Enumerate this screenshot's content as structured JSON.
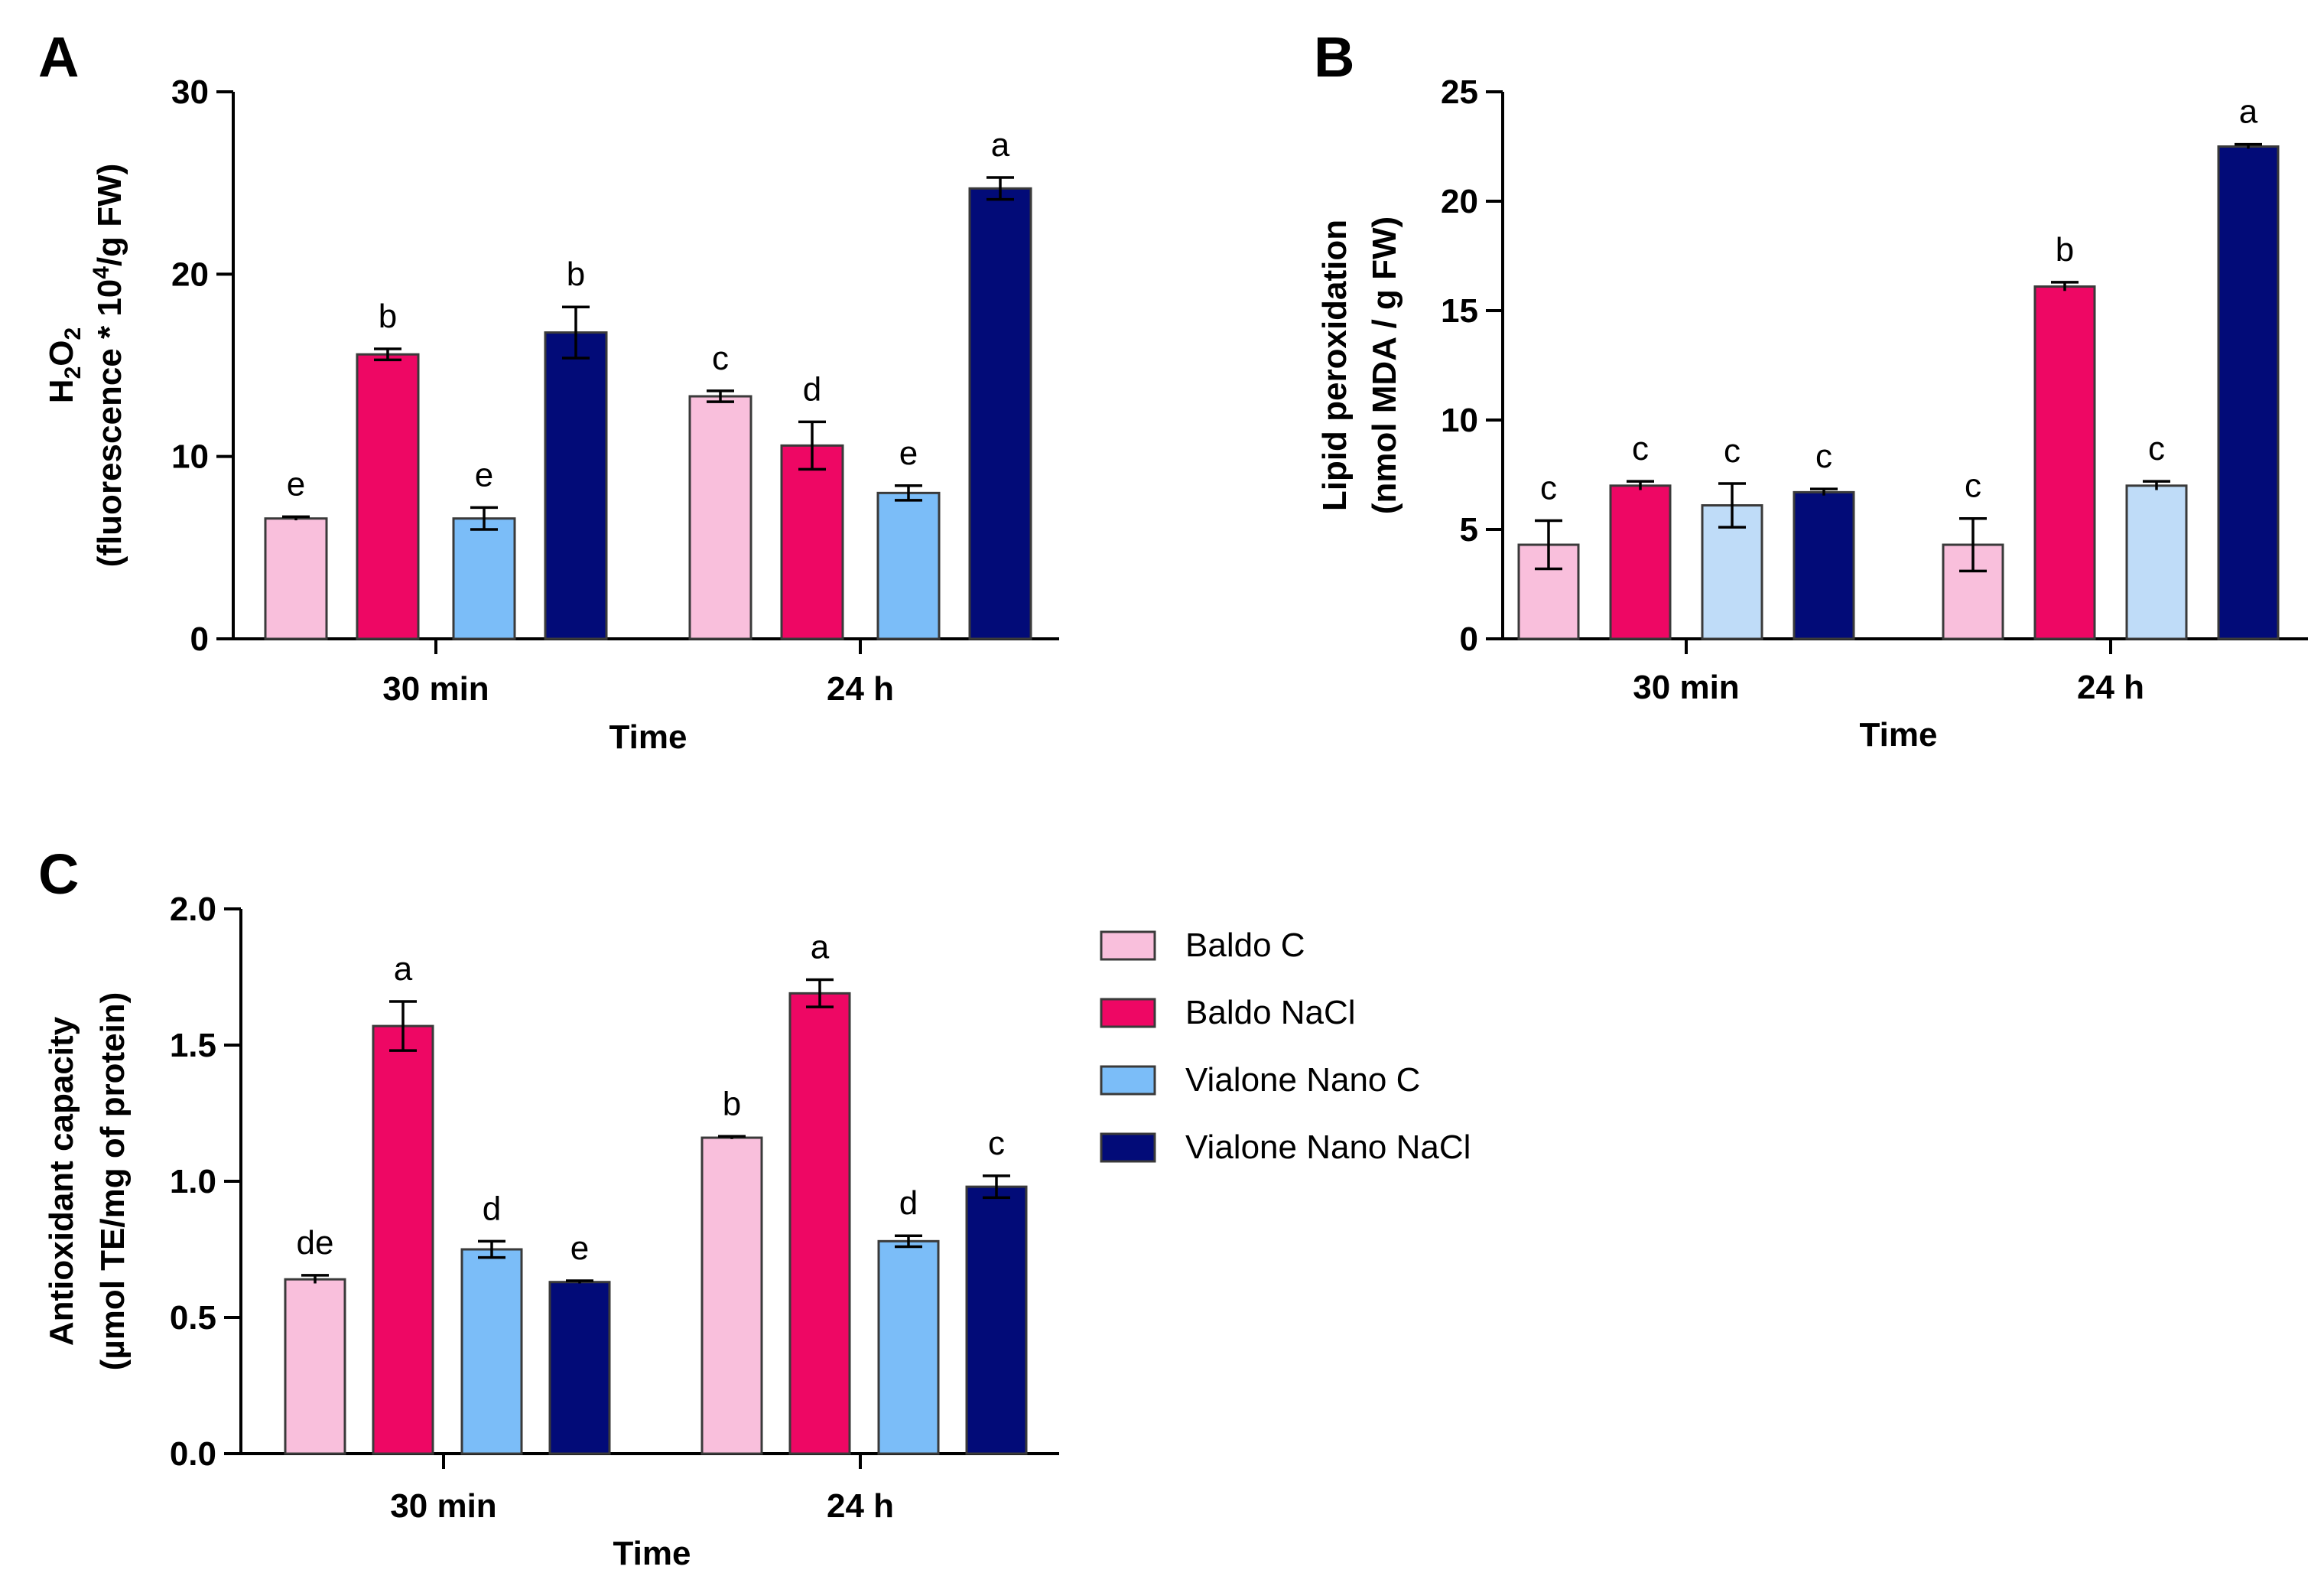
{
  "legend": [
    {
      "name": "Baldo C",
      "color": "#f9bfdc"
    },
    {
      "name": "Baldo NaCl",
      "color": "#ee0764"
    },
    {
      "name": "Vialone Nano C",
      "color": "#7bbdf8"
    },
    {
      "name": "Vialone Nano NaCl",
      "color": "#020b78"
    }
  ],
  "chart_data": [
    {
      "panel": "A",
      "type": "bar",
      "title": "",
      "xlabel": "Time",
      "ylabel_line1": "H2O2",
      "ylabel_line2": "(fluorescence * 10^4/g FW)",
      "categories": [
        "30 min",
        "24 h"
      ],
      "ylim": [
        0,
        30
      ],
      "yticks": [
        0,
        10,
        20,
        30
      ],
      "series": [
        {
          "name": "Baldo C",
          "color": "#f9bfdc",
          "values": [
            6.6,
            13.3
          ],
          "errors": [
            0.1,
            0.3
          ],
          "letters": [
            "e",
            "c"
          ]
        },
        {
          "name": "Baldo NaCl",
          "color": "#ee0764",
          "values": [
            15.6,
            10.6
          ],
          "errors": [
            0.3,
            1.3
          ],
          "letters": [
            "b",
            "d"
          ]
        },
        {
          "name": "Vialone Nano C",
          "color": "#7bbdf8",
          "values": [
            6.6,
            8.0
          ],
          "errors": [
            0.6,
            0.4
          ],
          "letters": [
            "e",
            "e"
          ]
        },
        {
          "name": "Vialone Nano NaCl",
          "color": "#020b78",
          "values": [
            16.8,
            24.7
          ],
          "errors": [
            1.4,
            0.6
          ],
          "letters": [
            "b",
            "a"
          ]
        }
      ]
    },
    {
      "panel": "B",
      "type": "bar",
      "title": "",
      "xlabel": "Time",
      "ylabel_line1": "Lipid peroxidation",
      "ylabel_line2": "(nmol MDA / g FW)",
      "categories": [
        "30 min",
        "24 h"
      ],
      "ylim": [
        0,
        25
      ],
      "yticks": [
        0,
        5,
        10,
        15,
        20,
        25
      ],
      "series": [
        {
          "name": "Baldo C",
          "color": "#f9bfdc",
          "values": [
            4.3,
            4.3
          ],
          "errors": [
            1.1,
            1.2
          ],
          "letters": [
            "c",
            "c"
          ]
        },
        {
          "name": "Baldo NaCl",
          "color": "#ee0764",
          "values": [
            7.0,
            16.1
          ],
          "errors": [
            0.2,
            0.2
          ],
          "letters": [
            "c",
            "b"
          ]
        },
        {
          "name": "Vialone Nano C",
          "color": "#bfdcf8",
          "values": [
            6.1,
            7.0
          ],
          "errors": [
            1.0,
            0.2
          ],
          "letters": [
            "c",
            "c"
          ]
        },
        {
          "name": "Vialone Nano NaCl",
          "color": "#020b78",
          "values": [
            6.7,
            22.5
          ],
          "errors": [
            0.15,
            0.1
          ],
          "letters": [
            "c",
            "a"
          ]
        }
      ]
    },
    {
      "panel": "C",
      "type": "bar",
      "title": "",
      "xlabel": "Time",
      "ylabel_line1": "Antioxidant capacity",
      "ylabel_line2": "(µmol TE/mg of protein)",
      "categories": [
        "30 min",
        "24 h"
      ],
      "ylim": [
        0,
        2.0
      ],
      "yticks": [
        0.0,
        0.5,
        1.0,
        1.5,
        2.0
      ],
      "series": [
        {
          "name": "Baldo C",
          "color": "#f9bfdc",
          "values": [
            0.64,
            1.16
          ],
          "errors": [
            0.015,
            0.005
          ],
          "letters": [
            "de",
            "b"
          ]
        },
        {
          "name": "Baldo NaCl",
          "color": "#ee0764",
          "values": [
            1.57,
            1.69
          ],
          "errors": [
            0.09,
            0.05
          ],
          "letters": [
            "a",
            "a"
          ]
        },
        {
          "name": "Vialone Nano C",
          "color": "#7bbdf8",
          "values": [
            0.75,
            0.78
          ],
          "errors": [
            0.03,
            0.02
          ],
          "letters": [
            "d",
            "d"
          ]
        },
        {
          "name": "Vialone Nano NaCl",
          "color": "#020b78",
          "values": [
            0.63,
            0.98
          ],
          "errors": [
            0.005,
            0.04
          ],
          "letters": [
            "e",
            "c"
          ]
        }
      ]
    }
  ]
}
